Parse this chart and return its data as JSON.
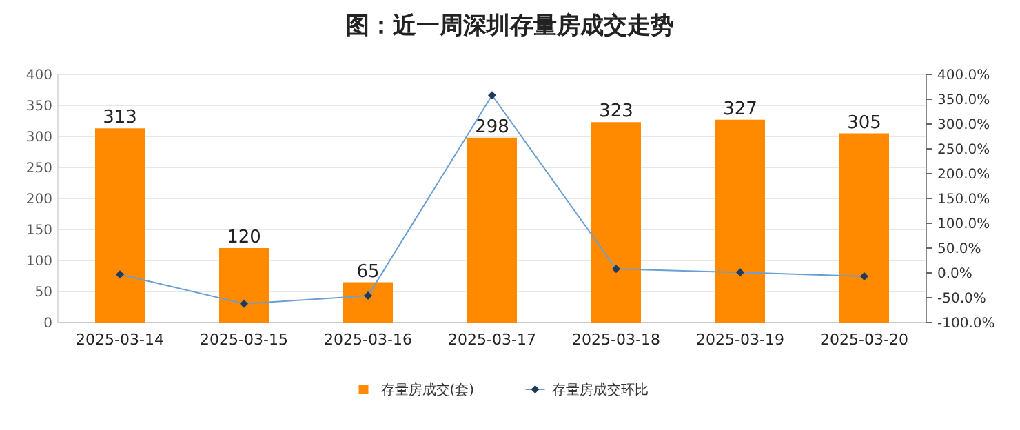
{
  "chart_data": {
    "type": "bar",
    "title": "图：近一周深圳存量房成交走势",
    "categories": [
      "2025-03-14",
      "2025-03-15",
      "2025-03-16",
      "2025-03-17",
      "2025-03-18",
      "2025-03-19",
      "2025-03-20"
    ],
    "series": [
      {
        "name": "存量房成交(套)",
        "color": "#ff8a00",
        "values": [
          313,
          120,
          65,
          298,
          323,
          327,
          305
        ],
        "value_labels": [
          "313",
          "120",
          "65",
          "298",
          "323",
          "327",
          "305"
        ]
      },
      {
        "name": "存量房成交环比",
        "type": "line",
        "axis": "y2",
        "color": "#6a9fd4",
        "values": [
          -3,
          -62,
          -46,
          358,
          8,
          1,
          -7
        ]
      }
    ],
    "ylim": [
      0,
      400
    ],
    "yticks": [
      0,
      50,
      100,
      150,
      200,
      250,
      300,
      350,
      400
    ],
    "y2lim": [
      -100,
      400
    ],
    "y2ticks": [
      {
        "value": -100,
        "label": "-100.0%"
      },
      {
        "value": -50,
        "label": "-50.0%"
      },
      {
        "value": 0,
        "label": "0.0%"
      },
      {
        "value": 50,
        "label": "50.0%"
      },
      {
        "value": 100,
        "label": "100.0%"
      },
      {
        "value": 150,
        "label": "150.0%"
      },
      {
        "value": 200,
        "label": "200.0%"
      },
      {
        "value": 250,
        "label": "250.0%"
      },
      {
        "value": 300,
        "label": "300.0%"
      },
      {
        "value": 350,
        "label": "350.0%"
      },
      {
        "value": 400,
        "label": "400.0%"
      }
    ],
    "grid": "y",
    "legend": "bottom",
    "marker": "diamond",
    "line_style": "solid"
  }
}
